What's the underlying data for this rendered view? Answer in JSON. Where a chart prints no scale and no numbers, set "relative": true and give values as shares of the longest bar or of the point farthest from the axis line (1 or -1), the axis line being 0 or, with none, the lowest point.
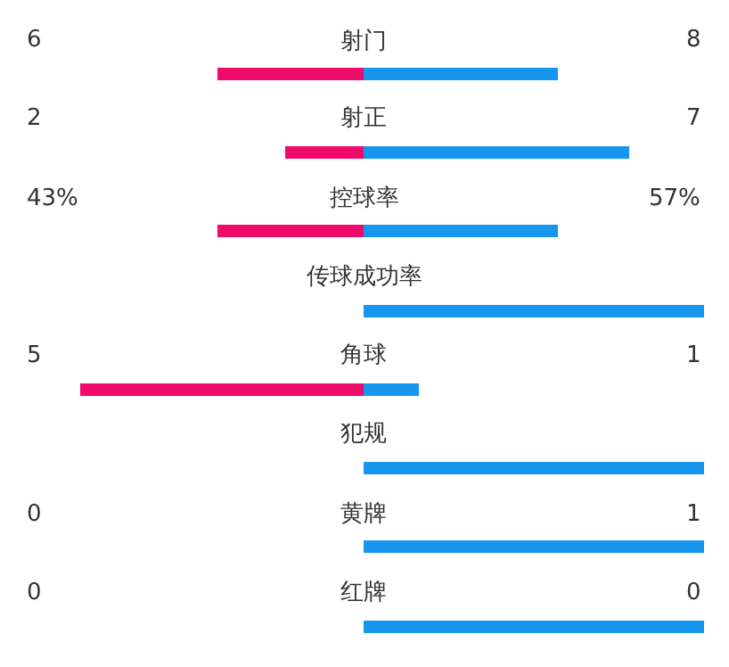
{
  "chart_data": {
    "type": "bar",
    "orientation": "horizontal",
    "relative": true,
    "stacked": true,
    "categories": [
      "射门",
      "射正",
      "控球率",
      "传球成功率",
      "角球",
      "犯规",
      "黄牌",
      "红牌"
    ],
    "series": [
      {
        "color": "#f00a6a",
        "values": [
          -0.43,
          -0.23,
          -0.43,
          null,
          -0.83,
          null,
          0,
          0
        ]
      },
      {
        "color": "#1796f0",
        "values": [
          0.57,
          0.78,
          0.57,
          1,
          0.16,
          1,
          1,
          1
        ]
      }
    ],
    "annotations": [
      "6",
      "8",
      "2",
      "7",
      "43%",
      "57%",
      "5",
      "1",
      "0",
      "1",
      "0",
      "0"
    ]
  }
}
